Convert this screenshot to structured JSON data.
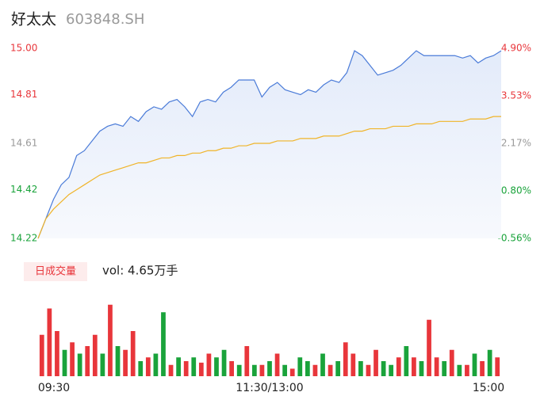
{
  "header": {
    "name": "好太太",
    "code": "603848.SH"
  },
  "chart_data": [
    {
      "type": "line",
      "xticks": [
        {
          "value": 0,
          "label": "09:30"
        },
        {
          "value": 30,
          "label": "11:30/13:00"
        },
        {
          "value": 60,
          "label": "15:00"
        }
      ],
      "xlim": [
        0,
        60
      ],
      "ylim": [
        14.22,
        15.0
      ],
      "yticks": [
        {
          "value": 15.0,
          "label": "15.00"
        },
        14.81,
        14.61,
        14.42,
        14.22
      ],
      "ytick_colors": [
        "#e8363b",
        "#e8363b",
        "#999999",
        "#1aa33b",
        "#1aa33b"
      ],
      "y2lim": [
        -0.56,
        4.9
      ],
      "y2ticks": [
        {
          "value": 4.9,
          "label": "4.90%"
        },
        {
          "value": 3.53,
          "label": "3.53%"
        },
        {
          "value": 2.17,
          "label": "2.17%"
        },
        {
          "value": 0.8,
          "label": "0.80%"
        },
        {
          "value": -0.56,
          "label": "-0.56%"
        }
      ],
      "y2tick_colors": [
        "#e8363b",
        "#e8363b",
        "#999999",
        "#1aa33b",
        "#1aa33b"
      ],
      "series": [
        {
          "color": "#4a7bd8",
          "fill": true,
          "values": [
            14.22,
            14.3,
            14.38,
            14.44,
            14.47,
            14.56,
            14.58,
            14.62,
            14.66,
            14.68,
            14.69,
            14.68,
            14.72,
            14.7,
            14.74,
            14.76,
            14.75,
            14.78,
            14.79,
            14.76,
            14.72,
            14.78,
            14.79,
            14.78,
            14.82,
            14.84,
            14.87,
            14.87,
            14.87,
            14.8,
            14.84,
            14.86,
            14.83,
            14.82,
            14.81,
            14.83,
            14.82,
            14.85,
            14.87,
            14.86,
            14.9,
            14.99,
            14.97,
            14.93,
            14.89,
            14.9,
            14.91,
            14.93,
            14.96,
            14.99,
            14.97,
            14.97,
            14.97,
            14.97,
            14.97,
            14.96,
            14.97,
            14.94,
            14.96,
            14.97,
            14.99
          ]
        },
        {
          "color": "#f0b429",
          "fill": false,
          "values": [
            14.22,
            14.3,
            14.34,
            14.37,
            14.4,
            14.42,
            14.44,
            14.46,
            14.48,
            14.49,
            14.5,
            14.51,
            14.52,
            14.53,
            14.53,
            14.54,
            14.55,
            14.55,
            14.56,
            14.56,
            14.57,
            14.57,
            14.58,
            14.58,
            14.59,
            14.59,
            14.6,
            14.6,
            14.61,
            14.61,
            14.61,
            14.62,
            14.62,
            14.62,
            14.63,
            14.63,
            14.63,
            14.64,
            14.64,
            14.64,
            14.65,
            14.66,
            14.66,
            14.67,
            14.67,
            14.67,
            14.68,
            14.68,
            14.68,
            14.69,
            14.69,
            14.69,
            14.7,
            14.7,
            14.7,
            14.7,
            14.71,
            14.71,
            14.71,
            14.72,
            14.72
          ]
        }
      ]
    },
    {
      "type": "bar",
      "legend_button": "日成交量",
      "vol_label": "vol: 4.65万手",
      "ylim": [
        0,
        100
      ],
      "values": [
        55,
        90,
        60,
        35,
        45,
        30,
        40,
        55,
        30,
        95,
        40,
        35,
        60,
        20,
        25,
        30,
        85,
        15,
        25,
        20,
        25,
        18,
        30,
        25,
        35,
        20,
        15,
        40,
        15,
        15,
        20,
        30,
        15,
        10,
        25,
        20,
        15,
        30,
        15,
        20,
        45,
        30,
        20,
        15,
        35,
        20,
        15,
        25,
        40,
        25,
        20,
        75,
        25,
        20,
        35,
        15,
        15,
        30,
        20,
        35,
        25
      ],
      "colors": [
        "#e8363b",
        "#e8363b",
        "#e8363b",
        "#1aa33b",
        "#e8363b",
        "#1aa33b",
        "#e8363b",
        "#e8363b",
        "#1aa33b",
        "#e8363b",
        "#1aa33b",
        "#e8363b",
        "#e8363b",
        "#1aa33b",
        "#e8363b",
        "#1aa33b",
        "#1aa33b",
        "#e8363b",
        "#1aa33b",
        "#e8363b",
        "#1aa33b",
        "#e8363b",
        "#e8363b",
        "#1aa33b",
        "#1aa33b",
        "#e8363b",
        "#1aa33b",
        "#e8363b",
        "#1aa33b",
        "#e8363b",
        "#1aa33b",
        "#e8363b",
        "#1aa33b",
        "#e8363b",
        "#1aa33b",
        "#1aa33b",
        "#e8363b",
        "#1aa33b",
        "#e8363b",
        "#1aa33b",
        "#e8363b",
        "#e8363b",
        "#1aa33b",
        "#e8363b",
        "#e8363b",
        "#1aa33b",
        "#1aa33b",
        "#e8363b",
        "#1aa33b",
        "#e8363b",
        "#1aa33b",
        "#e8363b",
        "#e8363b",
        "#1aa33b",
        "#e8363b",
        "#1aa33b",
        "#e8363b",
        "#1aa33b",
        "#e8363b",
        "#1aa33b",
        "#e8363b"
      ]
    }
  ]
}
